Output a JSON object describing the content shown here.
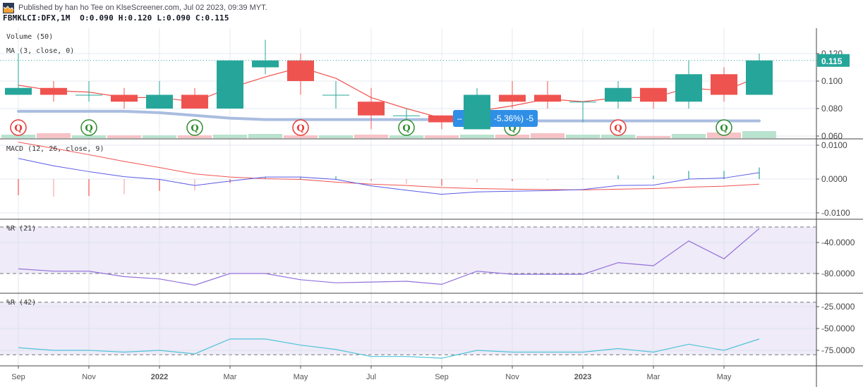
{
  "header": {
    "publisher_line": "Published by han ho Tee on KlseScreener.com, Jul 02 2023, 09:39 MYT.",
    "symbol_line": "FBMKLCI:DFX,1M  O:0.090 H:0.120 L:0.090 C:0.115",
    "logo_icon": "chart-logo-icon"
  },
  "panels": {
    "price": {
      "labels": [
        "Volume (50)",
        "MA (3, close, 0)"
      ],
      "y_ticks": [
        "0.120",
        "0.100",
        "0.080",
        "0.060"
      ],
      "last_price_badge": "0.115",
      "tooltip_badge": "-5.36%) -5",
      "markers": [
        {
          "month": "Sep",
          "type": "Q",
          "color": "red"
        },
        {
          "month": "Nov",
          "type": "Q",
          "color": "green"
        },
        {
          "month": "Feb",
          "type": "Q",
          "color": "green"
        },
        {
          "month": "May",
          "type": "Q",
          "color": "red"
        },
        {
          "month": "Aug",
          "type": "Q",
          "color": "green"
        },
        {
          "month": "Nov",
          "type": "Q",
          "color": "green"
        },
        {
          "month": "Feb",
          "type": "Q",
          "color": "red"
        },
        {
          "month": "May",
          "type": "Q",
          "color": "green"
        }
      ]
    },
    "macd": {
      "label": "MACD (12, 26, close, 9)",
      "y_ticks": [
        "0.0100",
        "0.0000",
        "-0.0100"
      ]
    },
    "wr21": {
      "label": "%R (21)",
      "y_ticks": [
        "-40.0000",
        "-80.0000"
      ]
    },
    "wr42": {
      "label": "%R (42)",
      "y_ticks": [
        "-25.0000",
        "-50.0000",
        "-75.0000"
      ]
    }
  },
  "x_axis": {
    "ticks": [
      "Sep",
      "Nov",
      "2022",
      "Mar",
      "May",
      "Jul",
      "Sep",
      "Nov",
      "2023",
      "Mar",
      "May"
    ]
  },
  "colors": {
    "up": "#26a69a",
    "down": "#ef5350",
    "ma": "#ef5350",
    "ma50": "#a9bde0",
    "macd": "#5a5ae6",
    "signal": "#ef5350",
    "wr21": "#9370db",
    "wr42": "#4fc3d9",
    "band": "#efebf8",
    "badge": "#26a69a",
    "tooltip": "#2f8fe6"
  },
  "chart_data": {
    "type": "candlestick",
    "title": "FBMKLCI:DFX, 1M",
    "x": [
      "2021-09",
      "2021-10",
      "2021-11",
      "2021-12",
      "2022-01",
      "2022-02",
      "2022-03",
      "2022-04",
      "2022-05",
      "2022-06",
      "2022-07",
      "2022-08",
      "2022-09",
      "2022-10",
      "2022-11",
      "2022-12",
      "2023-01",
      "2023-02",
      "2023-03",
      "2023-04",
      "2023-05",
      "2023-06"
    ],
    "open": [
      0.09,
      0.095,
      0.09,
      0.09,
      0.08,
      0.09,
      0.08,
      0.11,
      0.115,
      0.09,
      0.085,
      0.075,
      0.075,
      0.065,
      0.09,
      0.09,
      0.085,
      0.085,
      0.095,
      0.085,
      0.105,
      0.09
    ],
    "high": [
      0.12,
      0.1,
      0.1,
      0.095,
      0.1,
      0.095,
      0.115,
      0.13,
      0.12,
      0.1,
      0.095,
      0.08,
      0.075,
      0.095,
      0.1,
      0.1,
      0.085,
      0.1,
      0.095,
      0.115,
      0.11,
      0.12
    ],
    "low": [
      0.09,
      0.085,
      0.085,
      0.08,
      0.08,
      0.08,
      0.08,
      0.105,
      0.09,
      0.08,
      0.065,
      0.065,
      0.065,
      0.065,
      0.08,
      0.08,
      0.07,
      0.08,
      0.08,
      0.08,
      0.085,
      0.09
    ],
    "close": [
      0.095,
      0.09,
      0.09,
      0.085,
      0.09,
      0.08,
      0.115,
      0.115,
      0.1,
      0.09,
      0.075,
      0.075,
      0.07,
      0.09,
      0.085,
      0.085,
      0.085,
      0.095,
      0.085,
      0.105,
      0.09,
      0.115
    ],
    "ma3": [
      0.097,
      0.093,
      0.092,
      0.088,
      0.088,
      0.085,
      0.095,
      0.103,
      0.11,
      0.102,
      0.088,
      0.08,
      0.073,
      0.078,
      0.082,
      0.087,
      0.085,
      0.088,
      0.088,
      0.095,
      0.093,
      0.103
    ],
    "ma50": [
      0.078,
      0.078,
      0.078,
      0.078,
      0.077,
      0.075,
      0.073,
      0.072,
      0.072,
      0.072,
      0.072,
      0.072,
      0.072,
      0.071,
      0.071,
      0.071,
      0.071,
      0.071,
      0.071,
      0.071,
      0.071,
      0.071
    ],
    "volume_relative": [
      0.3,
      0.5,
      0.2,
      0.2,
      0.2,
      0.2,
      0.3,
      0.4,
      0.2,
      0.2,
      0.3,
      0.2,
      0.2,
      0.3,
      0.3,
      0.5,
      0.3,
      0.3,
      0.1,
      0.4,
      0.6,
      0.8
    ],
    "macd": [
      0.0061,
      0.0039,
      0.0022,
      0.0007,
      -0.0001,
      -0.0019,
      -0.0006,
      0.0006,
      0.0006,
      -0.0001,
      -0.002,
      -0.0033,
      -0.0045,
      -0.0038,
      -0.0036,
      -0.0034,
      -0.0031,
      -0.0019,
      -0.0018,
      0.0,
      0.0003,
      0.0019
    ],
    "signal": [
      0.0109,
      0.0091,
      0.0072,
      0.0052,
      0.0034,
      0.0015,
      0.0006,
      0.0001,
      -0.0001,
      -0.0009,
      -0.0015,
      -0.0019,
      -0.0025,
      -0.0028,
      -0.003,
      -0.0031,
      -0.0032,
      -0.003,
      -0.0028,
      -0.0024,
      -0.0021,
      -0.0015
    ],
    "wr21": [
      -74,
      -77,
      -77,
      -84,
      -87,
      -95,
      -80,
      -80,
      -88,
      -92,
      -91,
      -90,
      -94,
      -77,
      -81,
      -81,
      -81,
      -66,
      -70,
      -38,
      -61,
      -22
    ],
    "wr42": [
      -72,
      -75,
      -75,
      -77,
      -75,
      -79,
      -62,
      -62,
      -69,
      -74,
      -82,
      -82,
      -84,
      -75,
      -77,
      -77,
      -77,
      -73,
      -77,
      -68,
      -75,
      -62
    ],
    "ylim_price": [
      0.06,
      0.125
    ],
    "ylim_macd": [
      -0.011,
      0.011
    ],
    "ylim_wr21": [
      -100,
      -15
    ],
    "ylim_wr42": [
      -90,
      -18
    ],
    "xlabel": "",
    "ylabel": ""
  }
}
